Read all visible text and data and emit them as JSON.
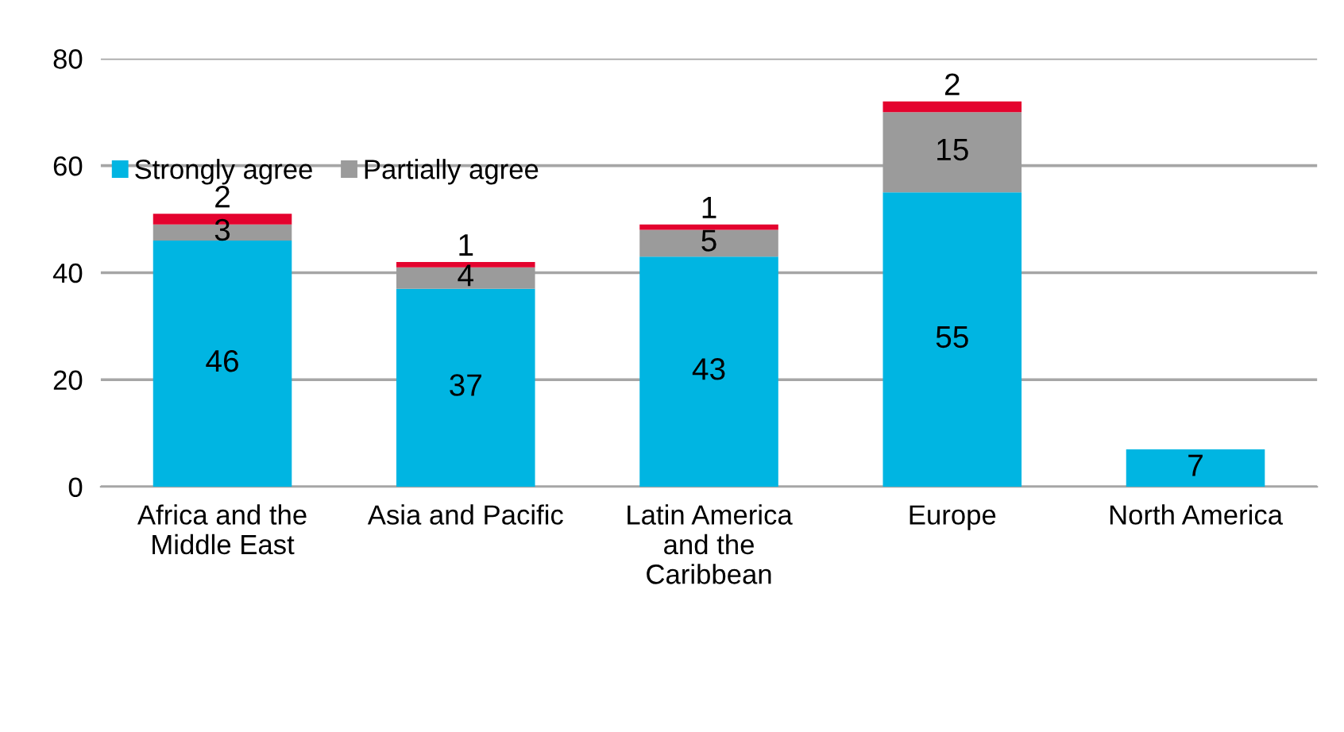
{
  "chart_data": {
    "type": "bar",
    "stacked": true,
    "categories": [
      "Africa and the\nMiddle East",
      "Asia and Pacific",
      "Latin America\nand the\nCaribbean",
      "Europe",
      "North America"
    ],
    "series": [
      {
        "name": "Strongly agree",
        "color": "#00b5e2",
        "values": [
          46,
          37,
          43,
          55,
          7
        ]
      },
      {
        "name": "Partially agree",
        "color": "#9b9b9b",
        "values": [
          3,
          4,
          5,
          15,
          null
        ]
      },
      {
        "color": "#e4032e",
        "values": [
          2,
          1,
          1,
          2,
          null
        ]
      }
    ],
    "ylim": [
      0,
      80
    ],
    "yticks": [
      0,
      20,
      40,
      60,
      80
    ],
    "grid": "y",
    "legend": "top left",
    "data_labels": true
  }
}
